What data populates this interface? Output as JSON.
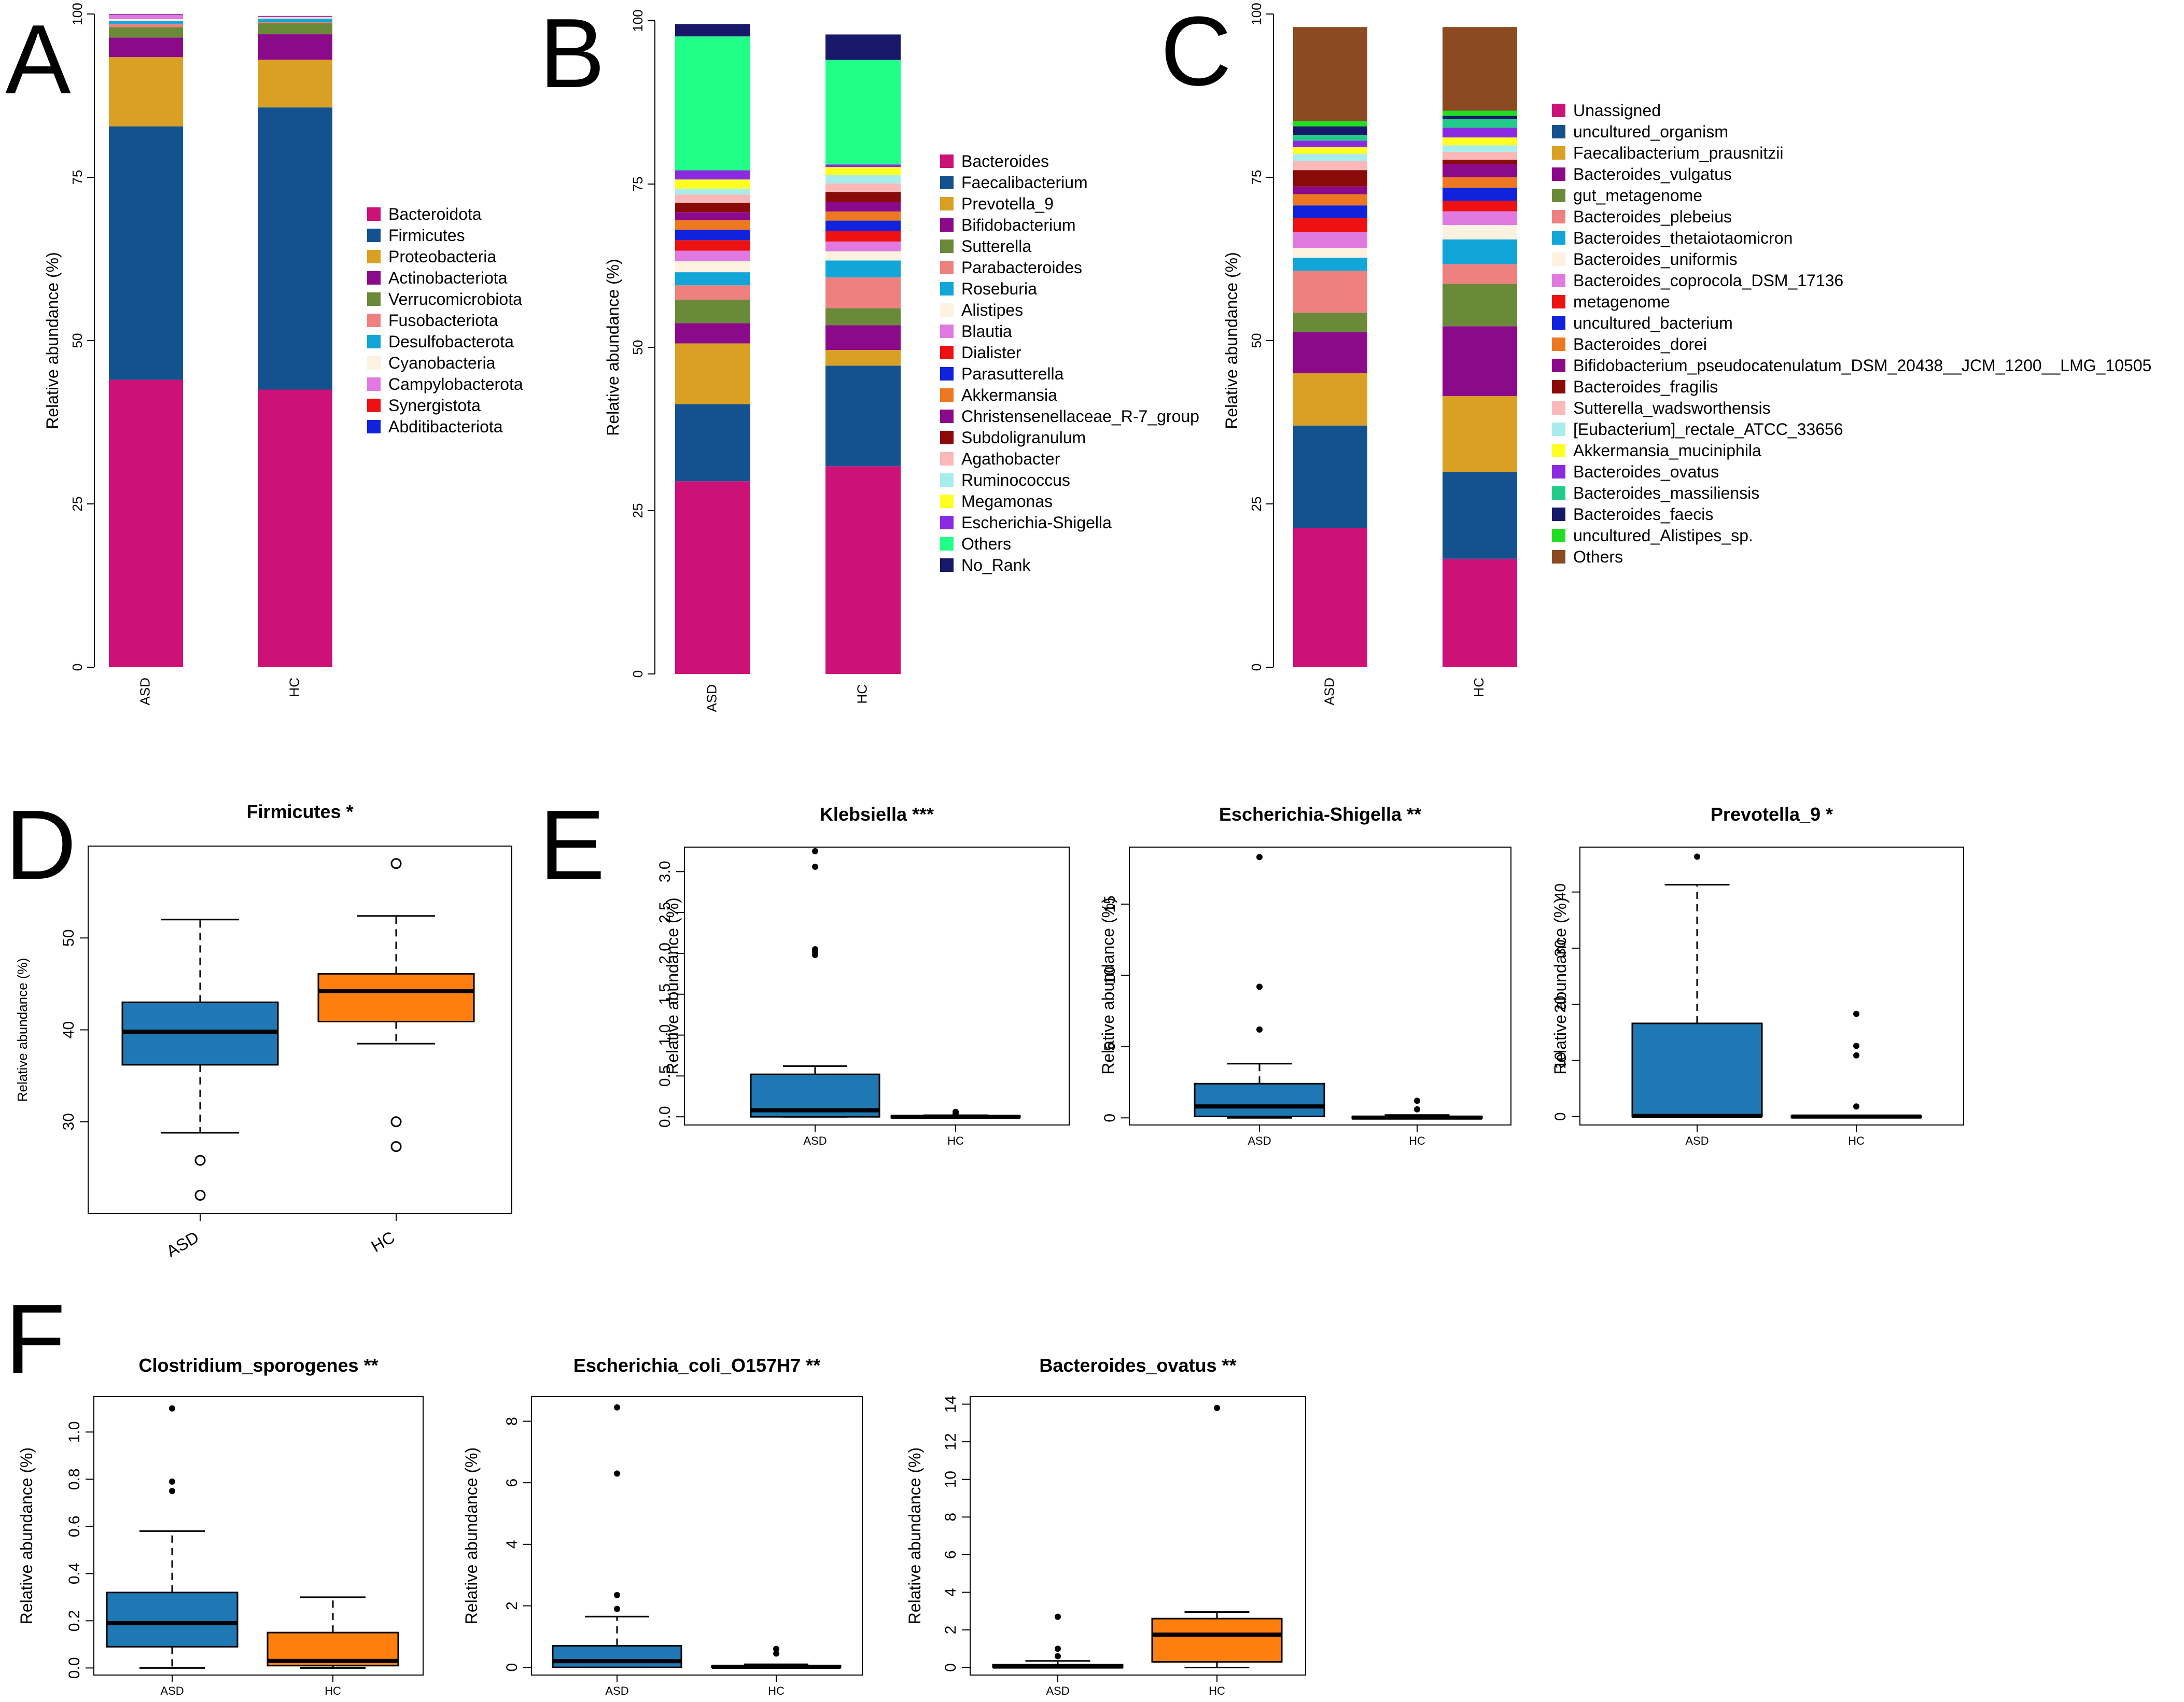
{
  "panels": {
    "A": "A",
    "B": "B",
    "C": "C",
    "D": "D",
    "E": "E",
    "F": "F"
  },
  "chart_data": [
    {
      "id": "A",
      "type": "stacked-bar",
      "ylabel": "Relative abundance (%)",
      "ylim": [
        0,
        100
      ],
      "yticks": [
        "0",
        "25",
        "50",
        "75",
        "100"
      ],
      "categories": [
        "ASD",
        "HC"
      ],
      "series": [
        {
          "name": "Bacteroidota",
          "color": "#CC1177",
          "values": [
            44.0,
            42.5
          ]
        },
        {
          "name": "Firmicutes",
          "color": "#14528F",
          "values": [
            38.8,
            43.2
          ]
        },
        {
          "name": "Proteobacteria",
          "color": "#DAA023",
          "values": [
            10.6,
            7.3
          ]
        },
        {
          "name": "Actinobacteriota",
          "color": "#8A0A8A",
          "values": [
            3.0,
            3.9
          ]
        },
        {
          "name": "Verrucomicrobiota",
          "color": "#6A8A3A",
          "values": [
            1.6,
            1.7
          ]
        },
        {
          "name": "Fusobacteriota",
          "color": "#EE8080",
          "values": [
            0.5,
            0.2
          ]
        },
        {
          "name": "Desulfobacterota",
          "color": "#12A6D8",
          "values": [
            0.4,
            0.5
          ]
        },
        {
          "name": "Cyanobacteria",
          "color": "#FDF1DF",
          "values": [
            0.3,
            0.2
          ]
        },
        {
          "name": "Campylobacterota",
          "color": "#E07AE0",
          "values": [
            0.7,
            0.1
          ]
        },
        {
          "name": "Synergistota",
          "color": "#EE1111",
          "values": [
            0.05,
            0.05
          ]
        },
        {
          "name": "Abditibacteriota",
          "color": "#1122DD",
          "values": [
            0.05,
            0.05
          ]
        }
      ]
    },
    {
      "id": "B",
      "type": "stacked-bar",
      "ylabel": "Relative abundance (%)",
      "ylim": [
        0,
        100
      ],
      "yticks": [
        "0",
        "25",
        "50",
        "75",
        "100"
      ],
      "categories": [
        "ASD",
        "HC"
      ],
      "series": [
        {
          "name": "Bacteroides",
          "color": "#CC1177",
          "values": [
            29.5,
            31.8
          ]
        },
        {
          "name": "Faecalibacterium",
          "color": "#14528F",
          "values": [
            11.8,
            15.4
          ]
        },
        {
          "name": "Prevotella_9",
          "color": "#DAA023",
          "values": [
            9.3,
            2.4
          ]
        },
        {
          "name": "Bifidobacterium",
          "color": "#8A0A8A",
          "values": [
            3.1,
            3.8
          ]
        },
        {
          "name": "Sutterella",
          "color": "#6A8A3A",
          "values": [
            3.6,
            2.6
          ]
        },
        {
          "name": "Parabacteroides",
          "color": "#EE8080",
          "values": [
            2.2,
            4.7
          ]
        },
        {
          "name": "Roseburia",
          "color": "#12A6D8",
          "values": [
            2.0,
            2.6
          ]
        },
        {
          "name": "Alistipes",
          "color": "#FDF1DF",
          "values": [
            1.7,
            1.4
          ]
        },
        {
          "name": "Blautia",
          "color": "#E07AE0",
          "values": [
            1.6,
            1.5
          ]
        },
        {
          "name": "Dialister",
          "color": "#EE1111",
          "values": [
            1.6,
            1.6
          ]
        },
        {
          "name": "Parasutterella",
          "color": "#1122DD",
          "values": [
            1.6,
            1.6
          ]
        },
        {
          "name": "Akkermansia",
          "color": "#EE7722",
          "values": [
            1.5,
            1.4
          ]
        },
        {
          "name": "Christensenellaceae_R-7_group",
          "color": "#8A0A8A",
          "values": [
            1.2,
            1.5
          ]
        },
        {
          "name": "Subdoligranulum",
          "color": "#8A0A0A",
          "values": [
            1.4,
            1.5
          ]
        },
        {
          "name": "Agathobacter",
          "color": "#FAB8B8",
          "values": [
            1.3,
            1.3
          ]
        },
        {
          "name": "Ruminococcus",
          "color": "#A8ECEC",
          "values": [
            0.9,
            1.3
          ]
        },
        {
          "name": "Megamonas",
          "color": "#FFFF22",
          "values": [
            1.4,
            1.2
          ]
        },
        {
          "name": "Escherichia-Shigella",
          "color": "#8A2BE2",
          "values": [
            1.4,
            0.4
          ]
        },
        {
          "name": "Others",
          "color": "#22FF88",
          "values": [
            20.5,
            16.0
          ]
        },
        {
          "name": "No_Rank",
          "color": "#18186A",
          "values": [
            1.9,
            3.9
          ]
        }
      ]
    },
    {
      "id": "C",
      "type": "stacked-bar",
      "ylabel": "Relative abundance (%)",
      "ylim": [
        0,
        100
      ],
      "yticks": [
        "0",
        "25",
        "50",
        "75",
        "100"
      ],
      "categories": [
        "ASD",
        "HC"
      ],
      "series": [
        {
          "name": "Unassigned",
          "color": "#CC1177",
          "values": [
            21.3,
            16.6
          ]
        },
        {
          "name": "uncultured_organism",
          "color": "#14528F",
          "values": [
            15.7,
            13.3
          ]
        },
        {
          "name": "Faecalibacterium_prausnitzii",
          "color": "#DAA023",
          "values": [
            8.0,
            11.6
          ]
        },
        {
          "name": "Bacteroides_vulgatus",
          "color": "#8A0A8A",
          "values": [
            6.3,
            10.7
          ]
        },
        {
          "name": "gut_metagenome",
          "color": "#6A8A3A",
          "values": [
            3.0,
            6.5
          ]
        },
        {
          "name": "Bacteroides_plebeius",
          "color": "#EE8080",
          "values": [
            6.4,
            3.0
          ]
        },
        {
          "name": "Bacteroides_thetaiotaomicron",
          "color": "#12A6D8",
          "values": [
            2.0,
            3.8
          ]
        },
        {
          "name": "Bacteroides_uniformis",
          "color": "#FDF1DF",
          "values": [
            1.5,
            2.2
          ]
        },
        {
          "name": "Bacteroides_coprocola_DSM_17136",
          "color": "#E07AE0",
          "values": [
            2.4,
            2.1
          ]
        },
        {
          "name": "metagenome",
          "color": "#EE1111",
          "values": [
            2.2,
            1.6
          ]
        },
        {
          "name": "uncultured_bacterium",
          "color": "#1122DD",
          "values": [
            1.9,
            2.0
          ]
        },
        {
          "name": "Bacteroides_dorei",
          "color": "#EE7722",
          "values": [
            1.7,
            1.6
          ]
        },
        {
          "name": "Bifidobacterium_pseudocatenulatum_DSM_20438__JCM_1200__LMG_10505",
          "color": "#8A0A8A",
          "values": [
            1.2,
            2.0
          ]
        },
        {
          "name": "Bacteroides_fragilis",
          "color": "#8A0A0A",
          "values": [
            2.5,
            0.7
          ]
        },
        {
          "name": "Sutterella_wadsworthensis",
          "color": "#FAB8B8",
          "values": [
            1.4,
            1.2
          ]
        },
        {
          "name": "[Eubacterium]_rectale_ATCC_33656",
          "color": "#A8ECEC",
          "values": [
            1.1,
            1.0
          ]
        },
        {
          "name": "Akkermansia_muciniphila",
          "color": "#FFFF22",
          "values": [
            1.0,
            1.2
          ]
        },
        {
          "name": "Bacteroides_ovatus",
          "color": "#8A2BE2",
          "values": [
            1.0,
            1.5
          ]
        },
        {
          "name": "Bacteroides_massiliensis",
          "color": "#22CC88",
          "values": [
            0.9,
            1.3
          ]
        },
        {
          "name": "Bacteroides_faecis",
          "color": "#18186A",
          "values": [
            1.3,
            0.5
          ]
        },
        {
          "name": "uncultured_Alistipes_sp.",
          "color": "#22DD22",
          "values": [
            0.8,
            0.8
          ]
        },
        {
          "name": "Others",
          "color": "#8B4A22",
          "values": [
            14.4,
            12.8
          ]
        }
      ]
    },
    {
      "id": "D",
      "type": "boxplot",
      "title": "Firmicutes *",
      "ylabel": "Relative abundance (%)",
      "ylim": [
        20,
        60
      ],
      "yticks": [
        30,
        40,
        50
      ],
      "categories": [
        "ASD",
        "HC"
      ],
      "boxes": [
        {
          "q1": 36.2,
          "median": 39.8,
          "q3": 43.0,
          "whisker_low": 28.8,
          "whisker_high": 52.0,
          "outliers": [
            25.8,
            22.0
          ],
          "color": "#1F78B4",
          "outlier_style": "open"
        },
        {
          "q1": 40.9,
          "median": 44.2,
          "q3": 46.1,
          "whisker_low": 38.5,
          "whisker_high": 52.4,
          "outliers": [
            58.1,
            30.0,
            27.3
          ],
          "color": "#FF7F0E",
          "outlier_style": "open"
        }
      ]
    },
    {
      "id": "E1",
      "type": "boxplot",
      "title": "Klebsiella ***",
      "ylabel": "Relative abundance (%)",
      "ylim": [
        -0.1,
        3.3
      ],
      "yticks": [
        "0.0",
        "0.5",
        "1.0",
        "1.5",
        "2.0",
        "2.5",
        "3.0"
      ],
      "categories": [
        "ASD",
        "HC"
      ],
      "boxes": [
        {
          "q1": 0.0,
          "median": 0.08,
          "q3": 0.52,
          "whisker_low": 0.0,
          "whisker_high": 0.62,
          "outliers": [
            3.25,
            3.06,
            2.05,
            2.02,
            1.98
          ],
          "color": "#1F78B4",
          "outlier_style": "filled"
        },
        {
          "q1": 0.0,
          "median": 0.0,
          "q3": 0.01,
          "whisker_low": 0.0,
          "whisker_high": 0.02,
          "outliers": [
            0.06,
            0.04
          ],
          "color": "#1F78B4",
          "outlier_style": "filled"
        }
      ]
    },
    {
      "id": "E2",
      "type": "boxplot",
      "title": "Escherichia-Shigella **",
      "ylabel": "Relative abundance (%)",
      "ylim": [
        -0.5,
        19
      ],
      "yticks": [
        "0",
        "5",
        "10",
        "15"
      ],
      "categories": [
        "ASD",
        "HC"
      ],
      "boxes": [
        {
          "q1": 0.1,
          "median": 0.8,
          "q3": 2.4,
          "whisker_low": 0.0,
          "whisker_high": 3.8,
          "outliers": [
            18.3,
            9.2,
            6.2
          ],
          "color": "#1F78B4",
          "outlier_style": "filled"
        },
        {
          "q1": 0.0,
          "median": 0.02,
          "q3": 0.1,
          "whisker_low": 0.0,
          "whisker_high": 0.2,
          "outliers": [
            1.2,
            0.6
          ],
          "color": "#1F78B4",
          "outlier_style": "filled"
        }
      ]
    },
    {
      "id": "E3",
      "type": "boxplot",
      "title": "Prevotella_9 *",
      "ylabel": "Relative abundance (%)",
      "ylim": [
        -1.5,
        48
      ],
      "yticks": [
        "0",
        "10",
        "20",
        "30",
        "40"
      ],
      "categories": [
        "ASD",
        "HC"
      ],
      "boxes": [
        {
          "q1": 0.0,
          "median": 0.1,
          "q3": 16.6,
          "whisker_low": 0.0,
          "whisker_high": 41.3,
          "outliers": [
            46.3
          ],
          "color": "#1F78B4",
          "outlier_style": "filled"
        },
        {
          "q1": 0.0,
          "median": 0.0,
          "q3": 0.1,
          "whisker_low": 0.0,
          "whisker_high": 0.2,
          "outliers": [
            18.3,
            12.6,
            10.9,
            1.8
          ],
          "color": "#1F78B4",
          "outlier_style": "filled"
        }
      ]
    },
    {
      "id": "F1",
      "type": "boxplot",
      "title": "Clostridium_sporogenes **",
      "ylabel": "Relative abundance (%)",
      "ylim": [
        -0.03,
        1.15
      ],
      "yticks": [
        "0.0",
        "0.2",
        "0.4",
        "0.6",
        "0.8",
        "1.0"
      ],
      "categories": [
        "ASD",
        "HC"
      ],
      "boxes": [
        {
          "q1": 0.09,
          "median": 0.19,
          "q3": 0.32,
          "whisker_low": 0.0,
          "whisker_high": 0.58,
          "outliers": [
            1.1,
            0.79,
            0.75
          ],
          "color": "#1F78B4",
          "outlier_style": "filled"
        },
        {
          "q1": 0.01,
          "median": 0.03,
          "q3": 0.15,
          "whisker_low": 0.0,
          "whisker_high": 0.3,
          "outliers": [],
          "color": "#FF7F0E",
          "outlier_style": "filled"
        }
      ]
    },
    {
      "id": "F2",
      "type": "boxplot",
      "title": "Escherichia_coli_O157H7 **",
      "ylabel": "Relative abundance (%)",
      "ylim": [
        -0.25,
        8.8
      ],
      "yticks": [
        "0",
        "2",
        "4",
        "6",
        "8"
      ],
      "categories": [
        "ASD",
        "HC"
      ],
      "boxes": [
        {
          "q1": 0.0,
          "median": 0.2,
          "q3": 0.7,
          "whisker_low": 0.0,
          "whisker_high": 1.65,
          "outliers": [
            8.45,
            6.3,
            2.35,
            1.9
          ],
          "color": "#1F78B4",
          "outlier_style": "filled"
        },
        {
          "q1": 0.0,
          "median": 0.02,
          "q3": 0.05,
          "whisker_low": 0.0,
          "whisker_high": 0.1,
          "outliers": [
            0.6,
            0.45
          ],
          "color": "#1F78B4",
          "outlier_style": "filled"
        }
      ]
    },
    {
      "id": "F3",
      "type": "boxplot",
      "title": "Bacteroides_ovatus **",
      "ylabel": "Relative abundance (%)",
      "ylim": [
        -0.4,
        14.4
      ],
      "yticks": [
        "0",
        "2",
        "4",
        "6",
        "8",
        "10",
        "12",
        "14"
      ],
      "categories": [
        "ASD",
        "HC"
      ],
      "boxes": [
        {
          "q1": 0.0,
          "median": 0.05,
          "q3": 0.15,
          "whisker_low": 0.0,
          "whisker_high": 0.35,
          "outliers": [
            2.7,
            1.0,
            0.6
          ],
          "color": "#1F78B4",
          "outlier_style": "filled"
        },
        {
          "q1": 0.3,
          "median": 1.75,
          "q3": 2.6,
          "whisker_low": 0.0,
          "whisker_high": 2.95,
          "outliers": [
            13.8
          ],
          "color": "#FF7F0E",
          "outlier_style": "filled"
        }
      ]
    }
  ]
}
